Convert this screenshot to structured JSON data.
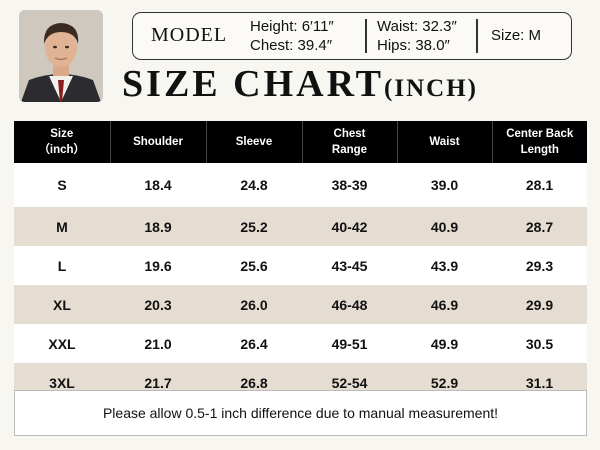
{
  "model": {
    "label": "MODEL",
    "height": "Height: 6′11″",
    "chest": "Chest: 39.4″",
    "waist": "Waist: 32.3″",
    "hips": "Hips: 38.0″",
    "size": "Size: M"
  },
  "title": {
    "main": "SIZE CHART",
    "unit": "(INCH)"
  },
  "table": {
    "headers": [
      [
        "Size",
        "（inch）"
      ],
      [
        "Shoulder"
      ],
      [
        "Sleeve"
      ],
      [
        "Chest",
        "Range"
      ],
      [
        "Waist"
      ],
      [
        "Center Back",
        "Length"
      ]
    ],
    "rows": [
      [
        "S",
        "18.4",
        "24.8",
        "38-39",
        "39.0",
        "28.1"
      ],
      [
        "M",
        "18.9",
        "25.2",
        "40-42",
        "40.9",
        "28.7"
      ],
      [
        "L",
        "19.6",
        "25.6",
        "43-45",
        "43.9",
        "29.3"
      ],
      [
        "XL",
        "20.3",
        "26.0",
        "46-48",
        "46.9",
        "29.9"
      ],
      [
        "XXL",
        "21.0",
        "26.4",
        "49-51",
        "49.9",
        "30.5"
      ],
      [
        "3XL",
        "21.7",
        "26.8",
        "52-54",
        "52.9",
        "31.1"
      ]
    ]
  },
  "note": "Please allow 0.5-1 inch difference due to manual measurement!",
  "colors": {
    "header_bg": "#000000",
    "stripe": "#e5ddd2",
    "page_bg": "#f8f6f1"
  },
  "icons": {
    "model_photo": "model-photo"
  }
}
